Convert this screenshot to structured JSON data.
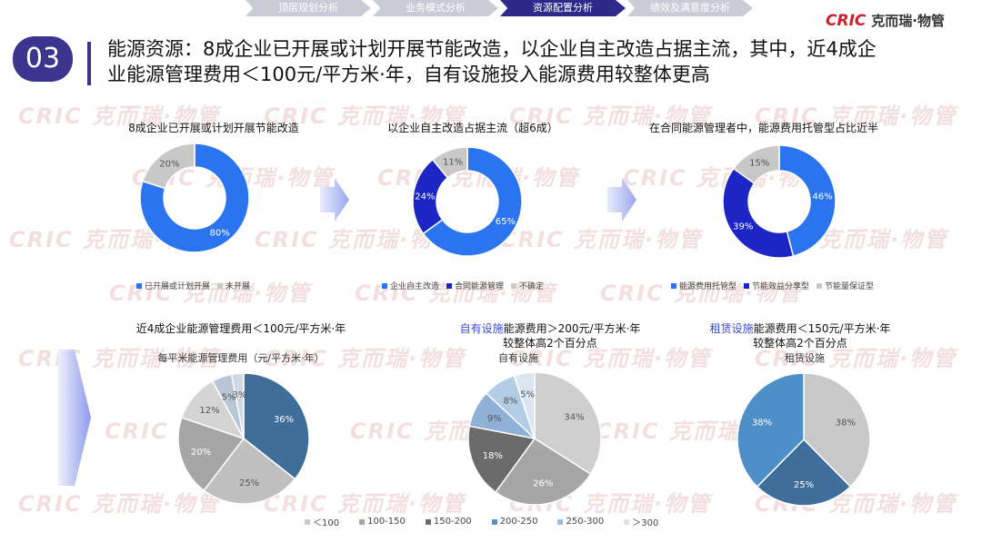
{
  "nav": {
    "tabs": [
      "顶层规划分析",
      "业务模式分析",
      "资源配置分析",
      "绩效及满意度分析"
    ],
    "active": 2
  },
  "logo": {
    "brand": "CRIC",
    "name": "克而瑞·物管"
  },
  "header": {
    "number": "03",
    "title_line1": "能源资源：8成企业已开展或计划开展节能改造，以企业自主改造占据主流，其中，近4成企",
    "title_line2": "业能源管理费用＜100元/平方米·年，自有设施投入能源费用较整体更高"
  },
  "watermark": "CRIC 克而瑞·物管",
  "colors": {
    "blue_bright": "#2b74f0",
    "blue_dark": "#1c26c4",
    "gray_light": "#c8c8c8",
    "steel_dark": "#3f6e9a",
    "steel_mid": "#4e8ec9"
  },
  "charts_text": {
    "c1_title": "8成企业已开展或计划开展节能改造",
    "c2_title": "以企业自主改造占据主流（超6成）",
    "c3_title": "在合同能源管理者中，能源费用托管型占比近半",
    "c4_title": "近4成企业能源管理费用＜100元/平方米·年",
    "c4_sub": "每平米能源管理费用（元/平方米·年）",
    "c5_title_hl": "自有设施",
    "c5_title_rest": "能源费用＞200元/平方米·年",
    "c5_title_line2": "较整体高2个百分点",
    "c5_sub": "自有设施",
    "c6_title_hl": "租赁设施",
    "c6_title_rest": "能源费用＜150元/平方米·年",
    "c6_title_line2": "较整体高2个百分点",
    "c6_sub": "租赁设施"
  },
  "chart_data": [
    {
      "type": "pie",
      "donut": true,
      "title": "8成企业已开展或计划开展节能改造",
      "categories": [
        "已开展或计划开展",
        "未开展"
      ],
      "values": [
        80,
        20
      ],
      "labels": [
        "80%",
        "20%"
      ],
      "colors": [
        "#2b74f0",
        "#c8c8c8"
      ],
      "legend": "bottom"
    },
    {
      "type": "pie",
      "donut": true,
      "title": "以企业自主改造占据主流（超6成）",
      "categories": [
        "企业自主改造",
        "合同能源管理",
        "不确定"
      ],
      "values": [
        65,
        24,
        11
      ],
      "labels": [
        "65%",
        "24%",
        "11%"
      ],
      "colors": [
        "#2b74f0",
        "#1c26c4",
        "#c8c8c8"
      ],
      "legend": "bottom"
    },
    {
      "type": "pie",
      "donut": true,
      "title": "在合同能源管理者中，能源费用托管型占比近半",
      "categories": [
        "能源费用托管型",
        "节能效益分享型",
        "节能量保证型"
      ],
      "values": [
        46,
        39,
        15
      ],
      "labels": [
        "46%",
        "39%",
        "15%"
      ],
      "colors": [
        "#2b74f0",
        "#1c26c4",
        "#c8c8c8"
      ],
      "legend": "bottom"
    },
    {
      "type": "pie",
      "title": "每平米能源管理费用（元/平方米·年）",
      "categories": [
        "＜100",
        "100-150",
        "150-200",
        "200-250",
        "250-300",
        "＞300"
      ],
      "values": [
        36,
        25,
        20,
        12,
        5,
        3
      ],
      "labels": [
        "36%",
        "25%",
        "20%",
        "12%",
        "5%",
        "3%"
      ],
      "colors": [
        "#3f6e9a",
        "#c0c0c0",
        "#a6a6a6",
        "#d4d4d4",
        "#b8c6d6",
        "#cfd9e6"
      ],
      "legend": "bottom"
    },
    {
      "type": "pie",
      "title": "自有设施",
      "categories": [
        "＜100",
        "100-150",
        "150-200",
        "200-250",
        "250-300",
        "＞300"
      ],
      "values": [
        34,
        26,
        18,
        9,
        8,
        5
      ],
      "labels": [
        "34%",
        "26%",
        "18%",
        "9%",
        "8%",
        "5%"
      ],
      "colors": [
        "#cfcfcf",
        "#a6a6a6",
        "#6b6b6b",
        "#8fb1d6",
        "#b4cde6",
        "#dde6f0"
      ],
      "legend": "bottom"
    },
    {
      "type": "pie",
      "title": "租赁设施",
      "categories": [
        "＜100",
        "100-150",
        "150-200"
      ],
      "values": [
        38,
        25,
        38
      ],
      "labels": [
        "38%",
        "25%",
        "38%"
      ],
      "colors": [
        "#c9c9c9",
        "#3f6e9a",
        "#4e8ec9"
      ],
      "legend": "bottom"
    }
  ],
  "bottom_legend": {
    "items": [
      "＜100",
      "100-150",
      "150-200",
      "200-250",
      "250-300",
      "＞300"
    ],
    "colors": [
      "#c9c9c9",
      "#a6a6a6",
      "#6b6b6b",
      "#5b8fc6",
      "#9cbde0",
      "#d6e3f1"
    ]
  }
}
